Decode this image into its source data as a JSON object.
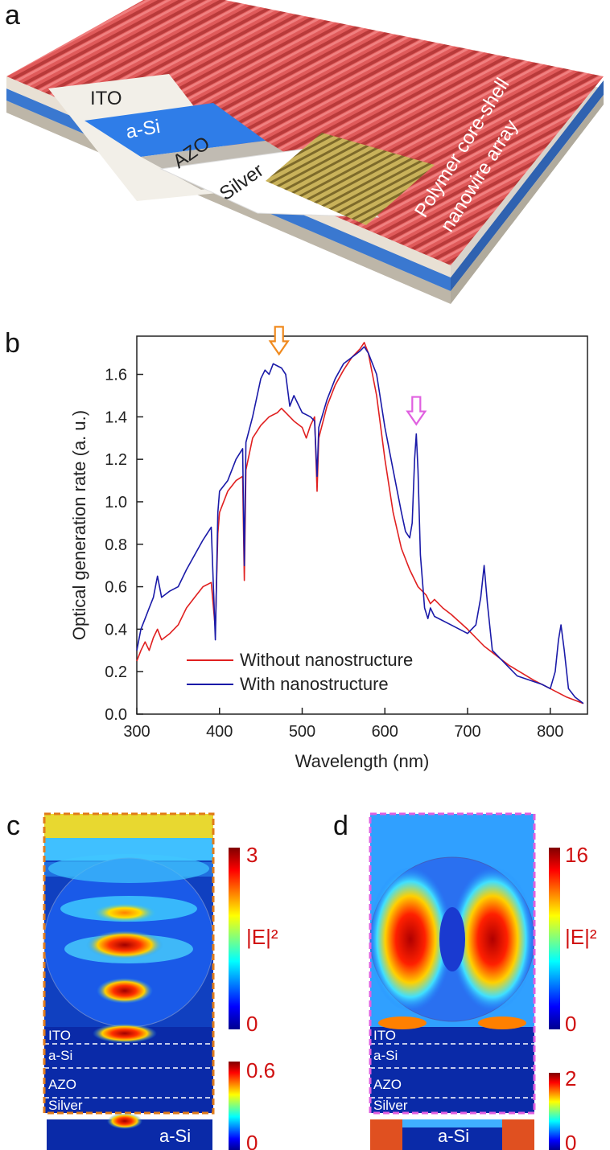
{
  "panels": {
    "a": {
      "letter": "a",
      "layer_labels": [
        "ITO",
        "a-Si",
        "AZO",
        "Silver"
      ],
      "array_label_lines": [
        "Polymer core-shell",
        "nanowire array"
      ]
    },
    "b": {
      "letter": "b"
    },
    "c": {
      "letter": "c",
      "layer_labels": [
        "ITO",
        "a-Si",
        "AZO",
        "Silver"
      ],
      "colorbar_main": {
        "max": "3",
        "min": "0",
        "label": "|E|²"
      },
      "colorbar_small": {
        "max": "0.6",
        "min": "0"
      },
      "inset_label": "a-Si",
      "border_color": "#e07b1a"
    },
    "d": {
      "letter": "d",
      "layer_labels": [
        "ITO",
        "a-Si",
        "AZO",
        "Silver"
      ],
      "colorbar_main": {
        "max": "16",
        "min": "0",
        "label": "|E|²"
      },
      "colorbar_small": {
        "max": "2",
        "min": "0"
      },
      "inset_label": "a-Si",
      "border_color": "#e060e0"
    }
  },
  "chart_data": {
    "type": "line",
    "xlabel": "Wavelength (nm)",
    "ylabel": "Optical generation rate (a. u.)",
    "xlim": [
      300,
      845
    ],
    "ylim": [
      0,
      1.78
    ],
    "xticks": [
      300,
      400,
      500,
      600,
      700,
      800
    ],
    "yticks": [
      0.0,
      0.2,
      0.4,
      0.6,
      0.8,
      1.0,
      1.2,
      1.4,
      1.6
    ],
    "ytick_labels": [
      "0.0",
      "0.2",
      "0.4",
      "0.6",
      "0.8",
      "1.0",
      "1.2",
      "1.4",
      "1.6"
    ],
    "legend_position": "lower-center",
    "annotations": [
      {
        "type": "arrow-down",
        "x": 472,
        "y": 1.68,
        "color": "#f08a1e"
      },
      {
        "type": "arrow-down",
        "x": 638,
        "y": 1.35,
        "color": "#e060e0"
      }
    ],
    "series": [
      {
        "name": "Without nanostructure",
        "color": "#e02020",
        "x": [
          300,
          305,
          310,
          315,
          320,
          325,
          330,
          340,
          350,
          360,
          370,
          380,
          390,
          395,
          398,
          400,
          410,
          420,
          428,
          430,
          432,
          440,
          450,
          460,
          470,
          475,
          480,
          490,
          500,
          505,
          510,
          515,
          518,
          520,
          530,
          540,
          550,
          560,
          570,
          575,
          580,
          590,
          600,
          610,
          620,
          630,
          640,
          650,
          655,
          660,
          670,
          680,
          700,
          720,
          750,
          780,
          800,
          820,
          840
        ],
        "values": [
          0.25,
          0.3,
          0.34,
          0.3,
          0.36,
          0.4,
          0.35,
          0.38,
          0.42,
          0.5,
          0.55,
          0.6,
          0.62,
          0.4,
          0.85,
          0.95,
          1.05,
          1.1,
          1.12,
          0.63,
          1.15,
          1.3,
          1.36,
          1.4,
          1.42,
          1.44,
          1.42,
          1.38,
          1.35,
          1.3,
          1.36,
          1.4,
          1.05,
          1.3,
          1.45,
          1.55,
          1.62,
          1.68,
          1.72,
          1.75,
          1.7,
          1.5,
          1.2,
          0.95,
          0.78,
          0.68,
          0.6,
          0.56,
          0.52,
          0.54,
          0.5,
          0.47,
          0.4,
          0.32,
          0.23,
          0.16,
          0.12,
          0.08,
          0.05
        ]
      },
      {
        "name": "With nanostructure",
        "color": "#1a1aa8",
        "x": [
          300,
          305,
          310,
          315,
          320,
          325,
          330,
          340,
          350,
          360,
          370,
          380,
          390,
          395,
          398,
          400,
          410,
          420,
          428,
          430,
          432,
          440,
          450,
          455,
          460,
          465,
          470,
          475,
          480,
          485,
          490,
          500,
          510,
          515,
          518,
          520,
          530,
          540,
          550,
          560,
          570,
          575,
          580,
          590,
          600,
          610,
          620,
          625,
          630,
          633,
          636,
          638,
          640,
          643,
          648,
          652,
          655,
          660,
          680,
          700,
          710,
          716,
          720,
          724,
          730,
          760,
          790,
          800,
          806,
          810,
          813,
          817,
          822,
          830,
          840
        ],
        "values": [
          0.3,
          0.4,
          0.45,
          0.5,
          0.55,
          0.65,
          0.55,
          0.58,
          0.6,
          0.68,
          0.75,
          0.82,
          0.88,
          0.35,
          0.95,
          1.05,
          1.1,
          1.2,
          1.25,
          0.7,
          1.28,
          1.4,
          1.58,
          1.62,
          1.6,
          1.65,
          1.64,
          1.63,
          1.6,
          1.45,
          1.5,
          1.42,
          1.4,
          1.38,
          1.12,
          1.35,
          1.48,
          1.58,
          1.65,
          1.68,
          1.71,
          1.73,
          1.7,
          1.6,
          1.35,
          1.15,
          0.95,
          0.86,
          0.83,
          0.9,
          1.2,
          1.32,
          1.15,
          0.75,
          0.5,
          0.45,
          0.5,
          0.46,
          0.42,
          0.38,
          0.42,
          0.55,
          0.7,
          0.52,
          0.3,
          0.18,
          0.14,
          0.12,
          0.2,
          0.35,
          0.42,
          0.3,
          0.12,
          0.08,
          0.05
        ]
      }
    ]
  }
}
